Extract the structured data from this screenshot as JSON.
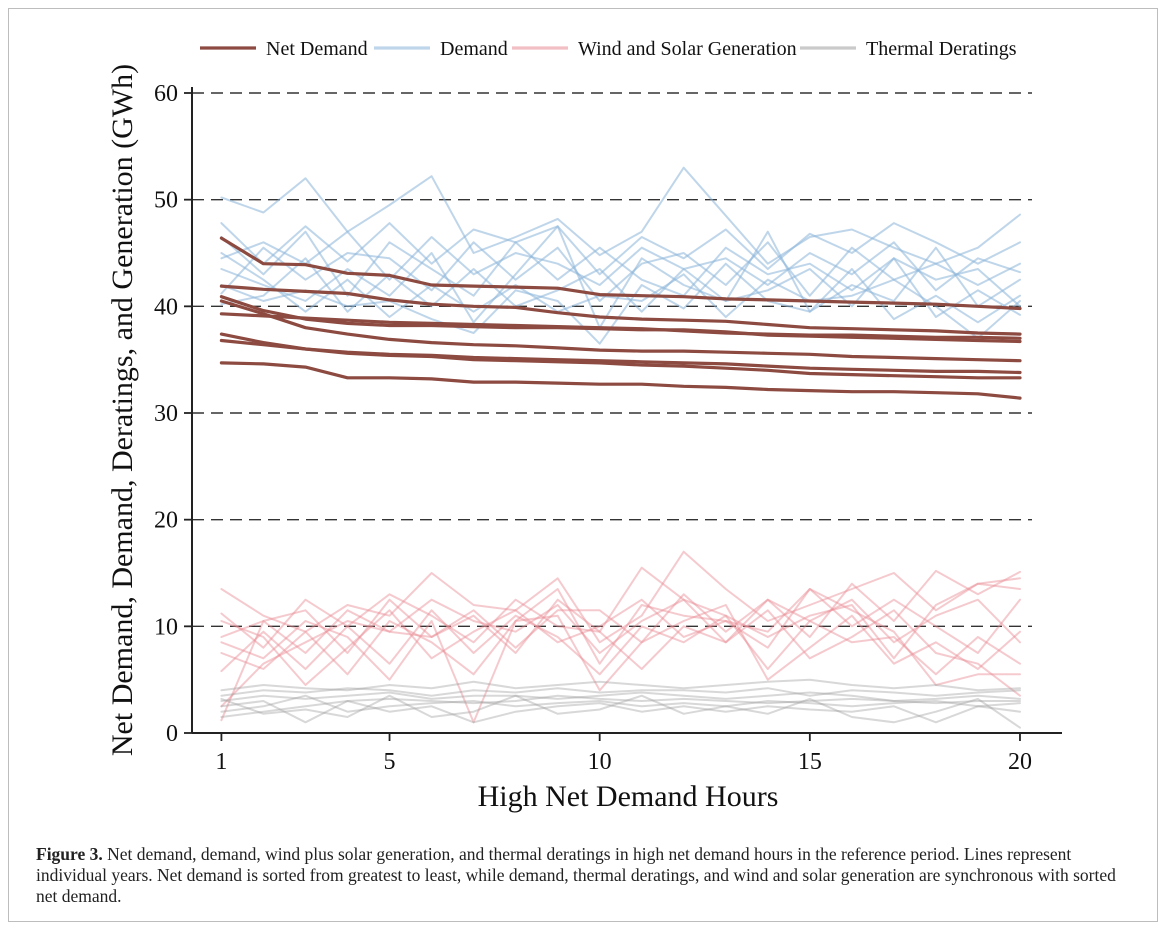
{
  "caption": {
    "label": "Figure 3.",
    "text": "Net demand, demand, wind plus solar generation, and thermal deratings in high net demand hours in the reference period. Lines represent individual years. Net demand is sorted from greatest to least, while demand, thermal deratings, and wind and solar generation are synchronous with sorted net demand."
  },
  "chart_data": {
    "type": "line",
    "xlabel": "High Net Demand Hours",
    "ylabel": "Net Demand, Demand, Deratings, and Generation (GWh)",
    "xlim": [
      0.3,
      21
    ],
    "ylim": [
      0,
      60
    ],
    "x_ticks": [
      1,
      5,
      10,
      15,
      20
    ],
    "y_ticks": [
      0,
      10,
      20,
      30,
      40,
      50,
      60
    ],
    "grid": "horizontal dashed",
    "legend_position": "top",
    "x": [
      1,
      2,
      3,
      4,
      5,
      6,
      7,
      8,
      9,
      10,
      11,
      12,
      13,
      14,
      15,
      16,
      17,
      18,
      19,
      20
    ],
    "groups": [
      {
        "name": "Demand",
        "color": "#8ab4d8",
        "opacity": 0.55,
        "width": 2,
        "lines": [
          [
            50.2,
            48.8,
            52.0,
            47.0,
            49.5,
            52.2,
            45.0,
            46.5,
            48.2,
            44.8,
            47.0,
            53.0,
            48.5,
            44.0,
            46.5,
            47.2,
            45.5,
            44.0,
            45.5,
            48.6
          ],
          [
            47.8,
            44.0,
            47.5,
            44.2,
            47.8,
            44.0,
            47.2,
            46.0,
            47.5,
            43.0,
            46.5,
            44.5,
            47.2,
            43.5,
            46.8,
            45.0,
            47.8,
            46.0,
            44.0,
            46.0
          ],
          [
            44.5,
            46.0,
            44.0,
            47.0,
            42.5,
            46.5,
            43.0,
            45.0,
            44.0,
            42.0,
            45.5,
            43.5,
            44.5,
            42.0,
            45.0,
            43.0,
            46.0,
            41.5,
            44.5,
            43.2
          ],
          [
            41.2,
            45.5,
            42.5,
            45.0,
            44.5,
            41.5,
            46.0,
            42.5,
            45.5,
            40.5,
            44.0,
            45.0,
            42.0,
            46.0,
            41.0,
            45.5,
            42.5,
            44.0,
            42.0,
            44.0
          ],
          [
            46.5,
            43.0,
            47.0,
            41.0,
            46.0,
            43.5,
            41.0,
            46.0,
            42.5,
            45.5,
            42.5,
            41.0,
            45.5,
            43.0,
            44.0,
            41.5,
            44.5,
            42.5,
            43.5,
            40.0
          ],
          [
            43.5,
            42.0,
            40.5,
            43.5,
            41.0,
            45.0,
            38.5,
            43.0,
            47.5,
            38.0,
            44.5,
            42.0,
            40.5,
            47.0,
            39.5,
            42.0,
            40.5,
            45.5,
            40.0,
            42.5
          ],
          [
            40.2,
            41.0,
            44.5,
            39.5,
            43.0,
            40.0,
            43.5,
            40.0,
            41.5,
            43.5,
            39.5,
            43.5,
            40.5,
            41.5,
            43.5,
            40.0,
            44.5,
            39.0,
            41.5,
            39.2
          ],
          [
            42.0,
            40.5,
            41.5,
            40.0,
            40.5,
            38.8,
            37.5,
            41.5,
            40.5,
            36.5,
            42.0,
            39.8,
            44.0,
            40.5,
            39.5,
            43.5,
            38.8,
            41.0,
            38.5,
            41.0
          ],
          [
            45.0,
            42.5,
            39.5,
            42.5,
            39.0,
            42.0,
            39.5,
            42.0,
            39.5,
            41.0,
            40.5,
            43.0,
            39.0,
            42.5,
            40.5,
            41.0,
            42.5,
            40.0,
            37.0,
            40.5
          ]
        ]
      },
      {
        "name": "Wind and Solar Generation",
        "color": "#e88a93",
        "opacity": 0.45,
        "width": 2,
        "lines": [
          [
            13.5,
            11.0,
            9.5,
            12.0,
            11.0,
            15.0,
            12.0,
            11.5,
            14.5,
            8.5,
            11.0,
            17.0,
            13.5,
            10.5,
            12.0,
            13.5,
            15.0,
            11.5,
            14.0,
            14.5
          ],
          [
            11.2,
            8.0,
            12.5,
            10.0,
            13.0,
            11.0,
            8.5,
            12.5,
            10.0,
            9.5,
            15.5,
            12.5,
            8.5,
            12.5,
            9.0,
            14.0,
            10.5,
            15.2,
            13.0,
            15.1
          ],
          [
            9.0,
            10.5,
            7.5,
            11.5,
            9.5,
            12.5,
            10.5,
            9.5,
            12.0,
            7.5,
            10.5,
            12.5,
            11.0,
            9.0,
            11.0,
            12.0,
            7.0,
            12.0,
            14.0,
            13.5
          ],
          [
            7.5,
            6.0,
            9.5,
            5.5,
            10.5,
            8.5,
            5.5,
            10.5,
            13.5,
            6.5,
            12.0,
            11.0,
            10.5,
            8.0,
            13.5,
            10.0,
            12.5,
            10.0,
            7.5,
            12.5
          ],
          [
            1.2,
            10.5,
            11.5,
            7.5,
            12.5,
            9.0,
            11.5,
            8.0,
            11.5,
            11.5,
            8.5,
            13.0,
            9.5,
            12.5,
            10.5,
            12.5,
            8.5,
            11.0,
            12.5,
            8.5
          ],
          [
            5.8,
            9.5,
            6.0,
            10.0,
            6.5,
            11.5,
            7.5,
            11.0,
            9.0,
            5.5,
            10.0,
            8.5,
            11.0,
            6.0,
            10.5,
            8.5,
            9.0,
            5.5,
            9.0,
            6.5
          ],
          [
            8.5,
            7.0,
            10.5,
            9.0,
            5.0,
            10.5,
            1.0,
            10.5,
            11.0,
            4.0,
            8.5,
            10.5,
            12.0,
            5.0,
            8.0,
            11.0,
            6.5,
            8.5,
            6.0,
            9.5
          ],
          [
            10.5,
            9.0,
            4.5,
            8.0,
            11.5,
            7.0,
            9.5,
            11.5,
            8.5,
            10.0,
            12.5,
            9.0,
            10.5,
            9.5,
            13.5,
            11.5,
            9.5,
            4.5,
            5.5,
            5.5
          ],
          [
            2.5,
            6.5,
            8.5,
            10.5,
            9.5,
            9.0,
            11.0,
            7.5,
            12.5,
            9.5,
            6.0,
            10.0,
            8.5,
            11.5,
            7.0,
            9.0,
            11.5,
            7.5,
            6.5,
            3.5
          ]
        ]
      },
      {
        "name": "Thermal Deratings",
        "color": "#9e9e9e",
        "opacity": 0.4,
        "width": 2,
        "lines": [
          [
            4.0,
            4.5,
            4.2,
            4.0,
            4.5,
            4.2,
            4.8,
            4.2,
            4.5,
            4.8,
            4.5,
            4.2,
            4.5,
            4.8,
            5.0,
            4.5,
            4.2,
            4.5,
            4.0,
            4.2
          ],
          [
            3.5,
            4.0,
            3.8,
            4.2,
            4.0,
            3.5,
            4.0,
            3.8,
            4.2,
            3.8,
            4.0,
            4.0,
            3.8,
            4.2,
            3.5,
            4.0,
            3.8,
            3.5,
            3.8,
            4.0
          ],
          [
            3.0,
            3.5,
            3.2,
            3.5,
            3.8,
            3.2,
            3.5,
            3.5,
            3.2,
            3.5,
            3.8,
            3.5,
            3.2,
            3.5,
            3.8,
            3.5,
            3.0,
            3.2,
            3.5,
            3.2
          ],
          [
            2.5,
            3.0,
            1.0,
            3.0,
            3.2,
            3.0,
            2.8,
            3.0,
            3.5,
            3.2,
            3.0,
            3.2,
            3.0,
            2.8,
            3.0,
            3.2,
            3.0,
            2.8,
            3.0,
            3.0
          ],
          [
            2.0,
            2.5,
            3.5,
            2.0,
            2.5,
            2.8,
            3.0,
            2.5,
            2.8,
            3.0,
            2.5,
            2.8,
            2.5,
            3.0,
            2.8,
            2.5,
            2.8,
            3.0,
            2.5,
            2.8
          ],
          [
            1.5,
            2.0,
            2.5,
            3.0,
            2.0,
            2.5,
            1.0,
            2.0,
            2.5,
            2.8,
            2.0,
            2.5,
            2.0,
            2.5,
            2.2,
            2.0,
            2.5,
            1.0,
            2.5,
            2.0
          ],
          [
            3.2,
            1.8,
            2.2,
            1.5,
            3.5,
            1.5,
            2.0,
            3.5,
            1.8,
            2.2,
            3.5,
            1.8,
            2.5,
            1.8,
            3.2,
            1.5,
            1.0,
            2.0,
            3.2,
            0.5
          ]
        ]
      },
      {
        "name": "Net Demand",
        "color": "#8c4a40",
        "opacity": 1,
        "width": 3.2,
        "lines": [
          [
            46.4,
            44.0,
            43.9,
            43.1,
            42.9,
            42.0,
            41.9,
            41.8,
            41.7,
            41.1,
            41.0,
            40.9,
            40.7,
            40.6,
            40.5,
            40.4,
            40.3,
            40.2,
            40.0,
            39.8
          ],
          [
            41.9,
            41.6,
            41.4,
            41.2,
            40.6,
            40.2,
            40.0,
            39.9,
            39.4,
            39.0,
            38.8,
            38.7,
            38.6,
            38.3,
            38.0,
            37.9,
            37.8,
            37.7,
            37.5,
            37.4
          ],
          [
            40.9,
            39.6,
            38.8,
            38.4,
            38.2,
            38.2,
            38.1,
            38.0,
            38.0,
            37.9,
            37.8,
            37.8,
            37.6,
            37.3,
            37.2,
            37.1,
            37.0,
            36.9,
            36.8,
            36.7
          ],
          [
            40.5,
            39.3,
            38.0,
            37.4,
            36.9,
            36.6,
            36.4,
            36.3,
            36.1,
            35.9,
            35.8,
            35.8,
            35.7,
            35.6,
            35.5,
            35.3,
            35.2,
            35.1,
            35.0,
            34.9
          ],
          [
            39.3,
            39.1,
            38.9,
            38.7,
            38.5,
            38.4,
            38.3,
            38.2,
            38.1,
            38.0,
            37.9,
            37.7,
            37.5,
            37.4,
            37.3,
            37.3,
            37.2,
            37.1,
            37.1,
            37.0
          ],
          [
            37.4,
            36.6,
            36.0,
            35.7,
            35.5,
            35.4,
            35.2,
            35.1,
            35.0,
            34.9,
            34.8,
            34.7,
            34.6,
            34.4,
            34.2,
            34.1,
            34.0,
            33.9,
            33.9,
            33.8
          ],
          [
            36.8,
            36.4,
            36.0,
            35.6,
            35.4,
            35.3,
            35.0,
            34.9,
            34.8,
            34.7,
            34.5,
            34.4,
            34.2,
            34.0,
            33.7,
            33.6,
            33.5,
            33.4,
            33.3,
            33.3
          ],
          [
            34.7,
            34.6,
            34.3,
            33.3,
            33.3,
            33.2,
            32.9,
            32.9,
            32.8,
            32.7,
            32.7,
            32.5,
            32.4,
            32.2,
            32.1,
            32.0,
            32.0,
            31.9,
            31.8,
            31.4
          ]
        ]
      }
    ],
    "legend": [
      {
        "name": "Net Demand",
        "color": "#8c4a40"
      },
      {
        "name": "Demand",
        "color": "#8ab4d8"
      },
      {
        "name": "Wind and Solar Generation",
        "color": "#e88a93"
      },
      {
        "name": "Thermal Deratings",
        "color": "#9e9e9e"
      }
    ]
  }
}
